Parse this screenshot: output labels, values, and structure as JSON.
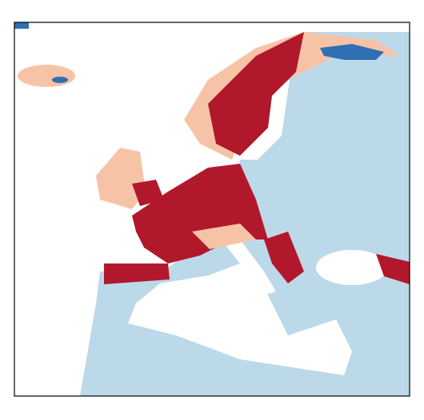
{
  "map": {
    "palette": [
      "#bcd9ea",
      "#b2182b",
      "#f7c3a7",
      "#2f6fb3",
      "#ffffff"
    ]
  }
}
